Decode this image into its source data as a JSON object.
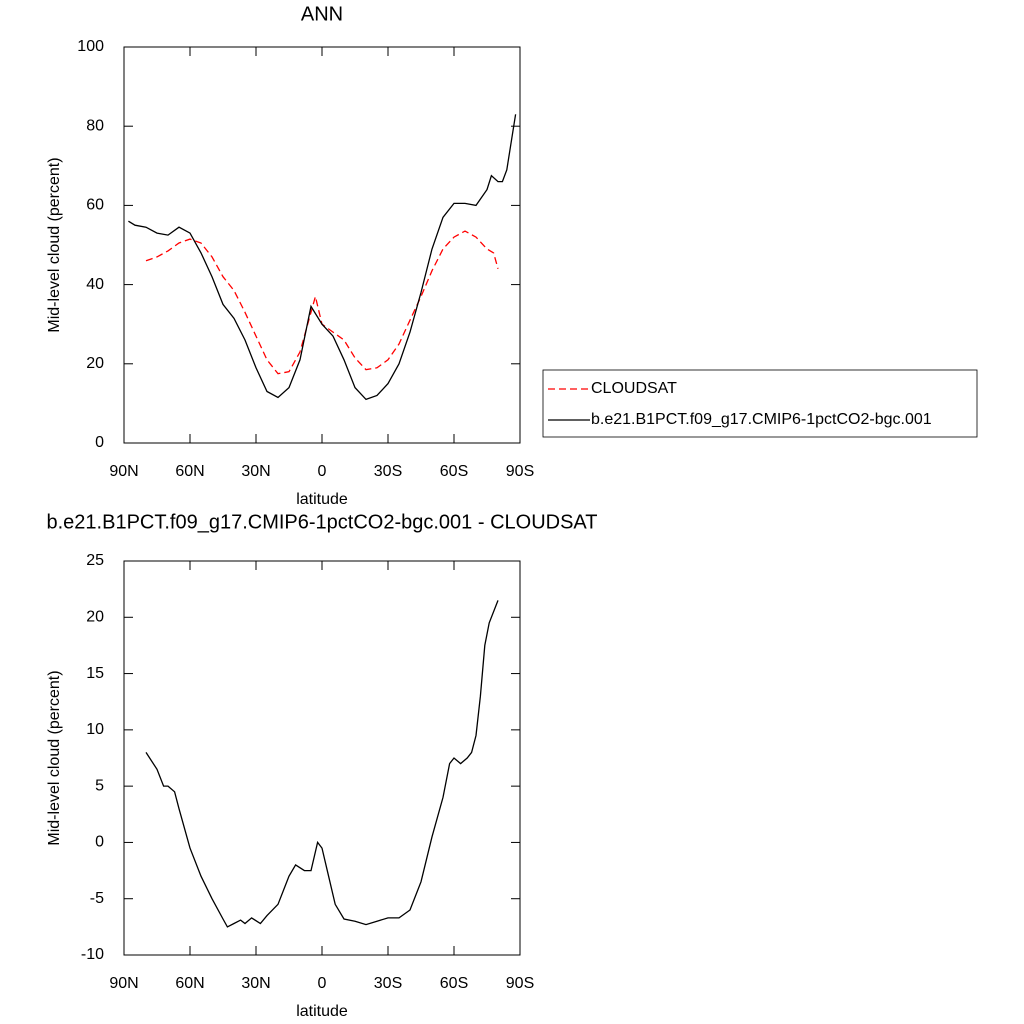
{
  "chart_data": [
    {
      "type": "line",
      "title": "ANN",
      "xlabel": "latitude",
      "ylabel": "Mid-level cloud (percent)",
      "xlim": [
        90,
        -90
      ],
      "ylim": [
        0,
        100
      ],
      "xticks": [
        {
          "value": 90,
          "label": "90N"
        },
        {
          "value": 60,
          "label": "60N"
        },
        {
          "value": 30,
          "label": "30N"
        },
        0,
        {
          "value": -30,
          "label": "30S"
        },
        {
          "value": -60,
          "label": "60S"
        },
        {
          "value": -90,
          "label": "90S"
        }
      ],
      "yticks": [
        0,
        20,
        40,
        60,
        80,
        100
      ],
      "legend": "right",
      "series": [
        {
          "name": "CLOUDSAT",
          "color": "#ff0000",
          "dash": "dashed",
          "x": [
            80,
            75,
            70,
            65,
            60,
            55,
            50,
            45,
            40,
            35,
            30,
            25,
            20,
            15,
            10,
            5,
            3,
            0,
            -5,
            -10,
            -15,
            -20,
            -25,
            -30,
            -35,
            -40,
            -45,
            -50,
            -55,
            -60,
            -65,
            -70,
            -75,
            -78,
            -80
          ],
          "values": [
            46,
            47,
            48.5,
            50.5,
            51.5,
            50.5,
            47,
            42,
            38.5,
            33,
            27,
            21,
            17.5,
            18,
            23,
            33,
            37,
            30,
            28,
            26,
            21.5,
            18.5,
            19,
            21,
            25,
            31,
            37,
            43.5,
            49,
            52,
            53.5,
            52,
            49,
            48,
            44
          ]
        },
        {
          "name": "b.e21.B1PCT.f09_g17.CMIP6-1pctCO2-bgc.001",
          "color": "#000000",
          "dash": "solid",
          "x": [
            88,
            85,
            80,
            75,
            70,
            65,
            60,
            55,
            50,
            45,
            40,
            35,
            30,
            25,
            20,
            15,
            10,
            5,
            0,
            -5,
            -10,
            -15,
            -20,
            -25,
            -30,
            -35,
            -40,
            -45,
            -50,
            -55,
            -60,
            -65,
            -70,
            -75,
            -77,
            -80,
            -82,
            -84,
            -88
          ],
          "values": [
            56,
            55,
            54.5,
            53,
            52.5,
            54.5,
            53,
            48,
            42,
            35,
            31.5,
            26,
            19,
            13,
            11.5,
            14,
            21,
            34.5,
            30,
            27,
            21,
            14,
            11,
            12,
            15,
            20,
            28,
            38,
            49,
            57,
            60.5,
            60.5,
            60,
            64,
            67.5,
            66,
            66,
            69,
            83
          ]
        }
      ]
    },
    {
      "type": "line",
      "title": "b.e21.B1PCT.f09_g17.CMIP6-1pctCO2-bgc.001 - CLOUDSAT",
      "xlabel": "latitude",
      "ylabel": "Mid-level cloud (percent)",
      "xlim": [
        90,
        -90
      ],
      "ylim": [
        -10,
        25
      ],
      "xticks": [
        {
          "value": 90,
          "label": "90N"
        },
        {
          "value": 60,
          "label": "60N"
        },
        {
          "value": 30,
          "label": "30N"
        },
        0,
        {
          "value": -30,
          "label": "30S"
        },
        {
          "value": -60,
          "label": "60S"
        },
        {
          "value": -90,
          "label": "90S"
        }
      ],
      "yticks": [
        -10,
        -5,
        0,
        5,
        10,
        15,
        20,
        25
      ],
      "series": [
        {
          "color": "#000000",
          "dash": "solid",
          "x": [
            80,
            75,
            72,
            70,
            67,
            65,
            60,
            55,
            50,
            45,
            43,
            40,
            37,
            35,
            32,
            28,
            25,
            20,
            15,
            12,
            8,
            5,
            2,
            0,
            -3,
            -6,
            -10,
            -15,
            -20,
            -25,
            -30,
            -35,
            -40,
            -45,
            -50,
            -55,
            -58,
            -60,
            -63,
            -66,
            -68,
            -70,
            -72,
            -74,
            -76,
            -80
          ],
          "values": [
            8,
            6.5,
            5,
            5,
            4.5,
            3,
            -0.5,
            -3,
            -5,
            -6.8,
            -7.5,
            -7.2,
            -6.9,
            -7.2,
            -6.7,
            -7.2,
            -6.5,
            -5.5,
            -3,
            -2,
            -2.5,
            -2.5,
            0,
            -0.5,
            -3,
            -5.5,
            -6.8,
            -7,
            -7.3,
            -7,
            -6.7,
            -6.7,
            -6,
            -3.5,
            0.5,
            4,
            7,
            7.5,
            7,
            7.5,
            8,
            9.5,
            13,
            17.5,
            19.5,
            21.5
          ]
        }
      ]
    }
  ]
}
